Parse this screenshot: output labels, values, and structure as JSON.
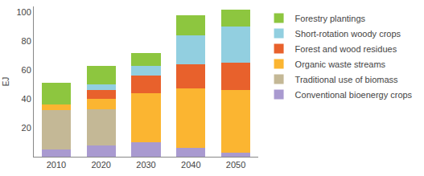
{
  "chart_data": {
    "type": "bar",
    "stacked": true,
    "y_label": "EJ",
    "categories": [
      "2010",
      "2020",
      "2030",
      "2040",
      "2050"
    ],
    "series": [
      {
        "name": "Conventional bioenergy crops",
        "color": "#a99ad0",
        "values": [
          5,
          8,
          10,
          6,
          3
        ]
      },
      {
        "name": "Traditional use of biomass",
        "color": "#c4b896",
        "values": [
          27,
          25,
          0,
          0,
          0
        ]
      },
      {
        "name": "Organic waste streams",
        "color": "#fbb531",
        "values": [
          4,
          7,
          34,
          41,
          43
        ]
      },
      {
        "name": "Forest and wood residues",
        "color": "#e8612c",
        "values": [
          0,
          6,
          12,
          17,
          19
        ]
      },
      {
        "name": "Short-rotation woody crops",
        "color": "#92cfe0",
        "values": [
          0,
          4,
          7,
          20,
          25
        ]
      },
      {
        "name": "Forestry plantings",
        "color": "#8dc63f",
        "values": [
          15,
          13,
          9,
          14,
          12
        ]
      }
    ],
    "ylim": [
      0,
      104
    ],
    "yticks": [
      20,
      40,
      60,
      80,
      100
    ],
    "grid": false,
    "legend": "right"
  }
}
